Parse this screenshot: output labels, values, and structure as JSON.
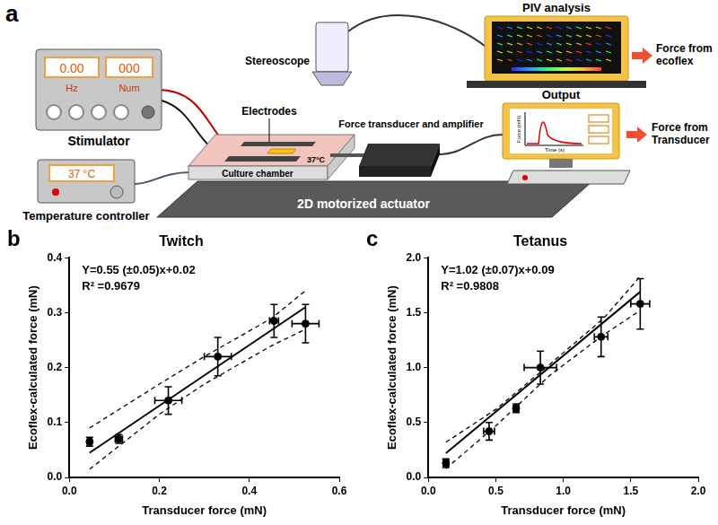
{
  "diagram": {
    "panel": "a",
    "stimulator": {
      "label": "Stimulator",
      "display_1": "0.00",
      "unit_1": "Hz",
      "display_2": "000",
      "unit_2": "Num"
    },
    "temperature_controller": {
      "label": "Temperature controller",
      "display": "37 °C"
    },
    "culture_chamber": {
      "label": "Culture chamber",
      "temperature": "37°C"
    },
    "electrodes": {
      "label": "Electrodes"
    },
    "stereoscope": {
      "label": "Stereoscope"
    },
    "piv_analysis": {
      "label": "PIV analysis",
      "result": "Force from ecoflex"
    },
    "force_transducer": {
      "label": "Force transducer and amplifier"
    },
    "output": {
      "label": "Output",
      "y_axis": "Force (mN)",
      "x_axis": "Time (s)",
      "result": "Force from Transducer"
    },
    "actuator": {
      "label": "2D motorized actuator"
    }
  },
  "chart_data": [
    {
      "type": "scatter",
      "panel": "b",
      "title": "Twitch",
      "x_label": "Transducer force (mN)",
      "y_label": "Ecoflex-calculated force (mN)",
      "annotations": [
        "Y=0.55 (±0.05)x+0.02",
        "R² =0.9679"
      ],
      "xlim": [
        0,
        0.6
      ],
      "xticks": [
        {
          "value": 0,
          "label": "0.0"
        },
        0.2,
        0.4,
        0.6
      ],
      "ylim": [
        0,
        0.4
      ],
      "yticks": [
        {
          "value": 0,
          "label": "0.0"
        },
        0.1,
        0.2,
        0.3,
        0.4
      ],
      "grid": false,
      "series": [
        {
          "type": "scatter",
          "color": "#000000",
          "marker": "circle",
          "x": [
            0.045,
            0.11,
            0.22,
            0.33,
            0.455,
            0.525
          ],
          "values": [
            0.065,
            0.07,
            0.14,
            0.22,
            0.285,
            0.28
          ],
          "x_error": [
            0.005,
            0.008,
            0.03,
            0.03,
            0.01,
            0.03
          ],
          "y_error": [
            0.008,
            0.008,
            0.025,
            0.035,
            0.03,
            0.035
          ]
        },
        {
          "type": "line",
          "color": "#000000",
          "line_style": "solid",
          "x": [
            0.045,
            0.525
          ],
          "values": [
            0.045,
            0.31
          ]
        },
        {
          "type": "line",
          "color": "#000000",
          "line_style": "dashed",
          "x": [
            0.045,
            0.2,
            0.3,
            0.45,
            0.525
          ],
          "values": [
            0.09,
            0.17,
            0.22,
            0.29,
            0.34
          ]
        },
        {
          "type": "line",
          "color": "#000000",
          "line_style": "dashed",
          "x": [
            0.045,
            0.2,
            0.3,
            0.45,
            0.525
          ],
          "values": [
            0.015,
            0.115,
            0.17,
            0.24,
            0.27
          ]
        }
      ]
    },
    {
      "type": "scatter",
      "panel": "c",
      "title": "Tetanus",
      "x_label": "Transducer force (mN)",
      "y_label": "Ecoflex-calculated force (mN)",
      "annotations": [
        "Y=1.02 (±0.07)x+0.09",
        "R² =0.9808"
      ],
      "xlim": [
        0,
        2
      ],
      "xticks": [
        {
          "value": 0,
          "label": "0.0"
        },
        0.5,
        {
          "value": 1,
          "label": "1.0"
        },
        1.5,
        {
          "value": 2,
          "label": "2.0"
        }
      ],
      "ylim": [
        0,
        2
      ],
      "yticks": [
        {
          "value": 0,
          "label": "0.0"
        },
        0.5,
        {
          "value": 1,
          "label": "1.0"
        },
        1.5,
        {
          "value": 2,
          "label": "2.0"
        }
      ],
      "grid": false,
      "series": [
        {
          "type": "scatter",
          "color": "#000000",
          "marker": "circle",
          "x": [
            0.13,
            0.45,
            0.65,
            0.83,
            1.28,
            1.57
          ],
          "values": [
            0.13,
            0.42,
            0.63,
            1.0,
            1.28,
            1.58
          ],
          "x_error": [
            0.02,
            0.04,
            0.02,
            0.12,
            0.05,
            0.07
          ],
          "y_error": [
            0.04,
            0.08,
            0.04,
            0.15,
            0.18,
            0.23
          ]
        },
        {
          "type": "line",
          "color": "#000000",
          "line_style": "solid",
          "x": [
            0.13,
            1.57
          ],
          "values": [
            0.22,
            1.69
          ]
        },
        {
          "type": "line",
          "color": "#000000",
          "line_style": "dashed",
          "x": [
            0.13,
            0.5,
            0.9,
            1.3,
            1.57
          ],
          "values": [
            0.32,
            0.62,
            1.03,
            1.45,
            1.83
          ]
        },
        {
          "type": "line",
          "color": "#000000",
          "line_style": "dashed",
          "x": [
            0.13,
            0.5,
            0.9,
            1.3,
            1.57
          ],
          "values": [
            0.08,
            0.47,
            0.93,
            1.3,
            1.52
          ]
        }
      ]
    }
  ]
}
